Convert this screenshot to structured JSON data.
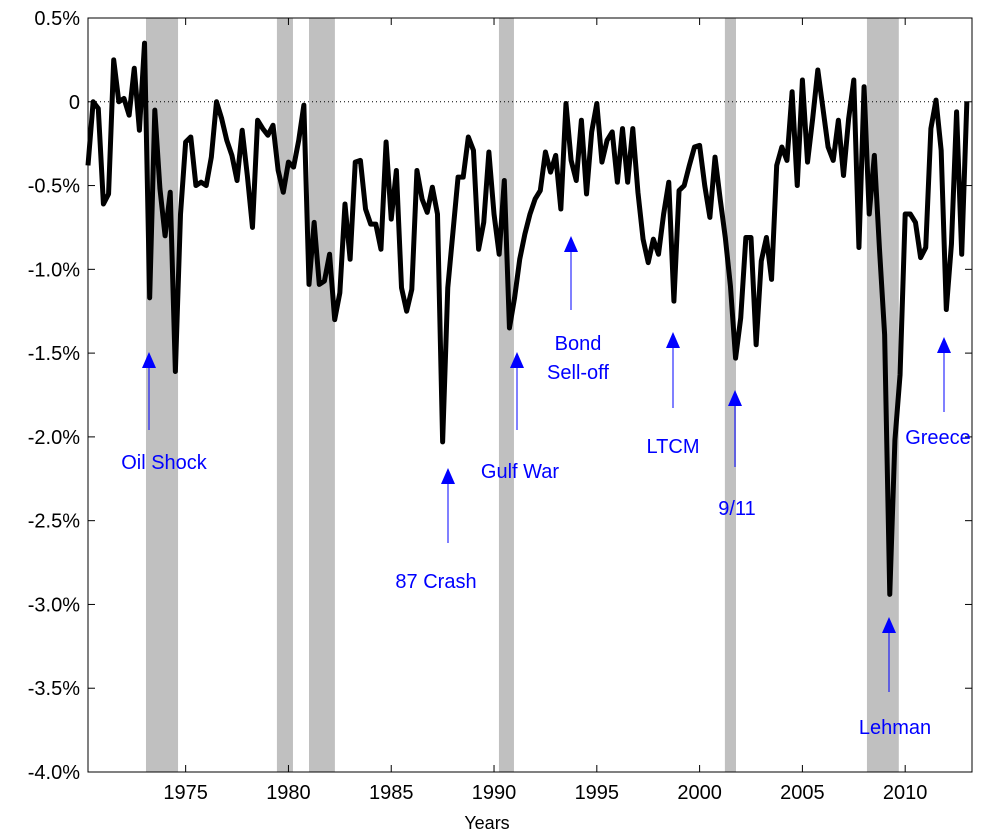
{
  "chart_data": {
    "type": "line",
    "x_label": "Years",
    "color": "#000000",
    "shade_color": "#c0c0c0",
    "annotation_color": "#0000ff",
    "zero_line": true,
    "xlim": [
      1970.25,
      2013.25
    ],
    "xticks": [
      1975,
      1980,
      1985,
      1990,
      1995,
      2000,
      2005,
      2010
    ],
    "ylim": [
      -4.0,
      0.5
    ],
    "yticks": [
      {
        "value": 0.5,
        "label": "0.5%"
      },
      0,
      {
        "value": -0.5,
        "label": "-0.5%"
      },
      {
        "value": -1.0,
        "label": "-1.0%"
      },
      {
        "value": -1.5,
        "label": "-1.5%"
      },
      {
        "value": -2.0,
        "label": "-2.0%"
      },
      {
        "value": -2.5,
        "label": "-2.5%"
      },
      {
        "value": -3.0,
        "label": "-3.0%"
      },
      {
        "value": -3.5,
        "label": "-3.5%"
      },
      {
        "value": -4.0,
        "label": "-4.0%"
      }
    ],
    "recessions": [
      [
        1973.07,
        1974.63
      ],
      [
        1979.44,
        1980.22
      ],
      [
        1981.0,
        1982.26
      ],
      [
        1990.24,
        1990.97
      ],
      [
        2001.23,
        2001.77
      ],
      [
        2008.14,
        2009.69
      ]
    ],
    "annotations": [
      {
        "lines": [
          "Oil Shock"
        ]
      },
      {
        "lines": [
          "87 Crash"
        ]
      },
      {
        "lines": [
          "Gulf War"
        ]
      },
      {
        "lines": [
          "Bond",
          "Sell-off"
        ]
      },
      {
        "lines": [
          "LTCM"
        ]
      },
      {
        "lines": [
          "9/11"
        ]
      },
      {
        "lines": [
          "Lehman"
        ]
      },
      {
        "lines": [
          "Greece"
        ]
      }
    ],
    "x": [
      1970.25,
      1970.5,
      1970.75,
      1971,
      1971.25,
      1971.5,
      1971.75,
      1972,
      1972.25,
      1972.5,
      1972.75,
      1973,
      1973.25,
      1973.5,
      1973.75,
      1974,
      1974.25,
      1974.5,
      1974.75,
      1975,
      1975.25,
      1975.5,
      1975.75,
      1976,
      1976.25,
      1976.5,
      1976.75,
      1977,
      1977.25,
      1977.5,
      1977.75,
      1978,
      1978.25,
      1978.5,
      1978.75,
      1979,
      1979.25,
      1979.5,
      1979.75,
      1980,
      1980.25,
      1980.5,
      1980.75,
      1981,
      1981.25,
      1981.5,
      1981.75,
      1982,
      1982.25,
      1982.5,
      1982.75,
      1983,
      1983.25,
      1983.5,
      1983.75,
      1984,
      1984.25,
      1984.5,
      1984.75,
      1985,
      1985.25,
      1985.5,
      1985.75,
      1986,
      1986.25,
      1986.5,
      1986.75,
      1987,
      1987.25,
      1987.5,
      1987.75,
      1988,
      1988.25,
      1988.5,
      1988.75,
      1989,
      1989.25,
      1989.5,
      1989.75,
      1990,
      1990.25,
      1990.5,
      1990.75,
      1991,
      1991.25,
      1991.5,
      1991.75,
      1992,
      1992.25,
      1992.5,
      1992.75,
      1993,
      1993.25,
      1993.5,
      1993.75,
      1994,
      1994.25,
      1994.5,
      1994.75,
      1995,
      1995.25,
      1995.5,
      1995.75,
      1996,
      1996.25,
      1996.5,
      1996.75,
      1997,
      1997.25,
      1997.5,
      1997.75,
      1998,
      1998.25,
      1998.5,
      1998.75,
      1999,
      1999.25,
      1999.5,
      1999.75,
      2000,
      2000.25,
      2000.5,
      2000.75,
      2001,
      2001.25,
      2001.5,
      2001.75,
      2002,
      2002.25,
      2002.5,
      2002.75,
      2003,
      2003.25,
      2003.5,
      2003.75,
      2004,
      2004.25,
      2004.5,
      2004.75,
      2005,
      2005.25,
      2005.5,
      2005.75,
      2006,
      2006.25,
      2006.5,
      2006.75,
      2007,
      2007.25,
      2007.5,
      2007.75,
      2008,
      2008.25,
      2008.5,
      2008.75,
      2009,
      2009.25,
      2009.5,
      2009.75,
      2010,
      2010.25,
      2010.5,
      2010.75,
      2011,
      2011.25,
      2011.5,
      2011.75,
      2012,
      2012.25,
      2012.5,
      2012.75,
      2013
    ],
    "values": [
      -0.38,
      0,
      -0.04,
      -0.61,
      -0.55,
      0.25,
      0,
      0.02,
      -0.08,
      0.2,
      -0.17,
      0.35,
      -1.17,
      -0.05,
      -0.52,
      -0.8,
      -0.54,
      -1.61,
      -0.67,
      -0.24,
      -0.21,
      -0.5,
      -0.48,
      -0.5,
      -0.33,
      0,
      -0.1,
      -0.23,
      -0.32,
      -0.47,
      -0.17,
      -0.44,
      -0.75,
      -0.11,
      -0.16,
      -0.2,
      -0.14,
      -0.41,
      -0.54,
      -0.36,
      -0.39,
      -0.23,
      -0.02,
      -1.09,
      -0.72,
      -1.09,
      -1.07,
      -0.91,
      -1.3,
      -1.14,
      -0.61,
      -0.94,
      -0.36,
      -0.35,
      -0.64,
      -0.73,
      -0.73,
      -0.88,
      -0.24,
      -0.7,
      -0.41,
      -1.11,
      -1.25,
      -1.12,
      -0.41,
      -0.58,
      -0.66,
      -0.51,
      -0.67,
      -2.03,
      -1.11,
      -0.78,
      -0.45,
      -0.45,
      -0.21,
      -0.29,
      -0.88,
      -0.72,
      -0.3,
      -0.67,
      -0.91,
      -0.47,
      -1.35,
      -1.17,
      -0.94,
      -0.79,
      -0.67,
      -0.58,
      -0.53,
      -0.3,
      -0.42,
      -0.32,
      -0.64,
      -0.01,
      -0.35,
      -0.47,
      -0.11,
      -0.55,
      -0.18,
      -0.01,
      -0.36,
      -0.23,
      -0.18,
      -0.48,
      -0.16,
      -0.48,
      -0.16,
      -0.54,
      -0.82,
      -0.96,
      -0.82,
      -0.91,
      -0.67,
      -0.48,
      -1.19,
      -0.53,
      -0.5,
      -0.38,
      -0.27,
      -0.26,
      -0.5,
      -0.69,
      -0.33,
      -0.58,
      -0.81,
      -1.1,
      -1.53,
      -1.29,
      -0.81,
      -0.81,
      -1.45,
      -0.95,
      -0.81,
      -1.06,
      -0.38,
      -0.27,
      -0.35,
      0.06,
      -0.5,
      0.13,
      -0.36,
      -0.1,
      0.19,
      -0.04,
      -0.27,
      -0.35,
      -0.11,
      -0.44,
      -0.1,
      0.13,
      -0.87,
      0.09,
      -0.67,
      -0.32,
      -0.88,
      -1.39,
      -2.94,
      -2.02,
      -1.63,
      -0.67,
      -0.67,
      -0.72,
      -0.93,
      -0.87,
      -0.16,
      0.01,
      -0.29,
      -1.24,
      -0.85,
      -0.06,
      -0.91,
      0
    ]
  }
}
